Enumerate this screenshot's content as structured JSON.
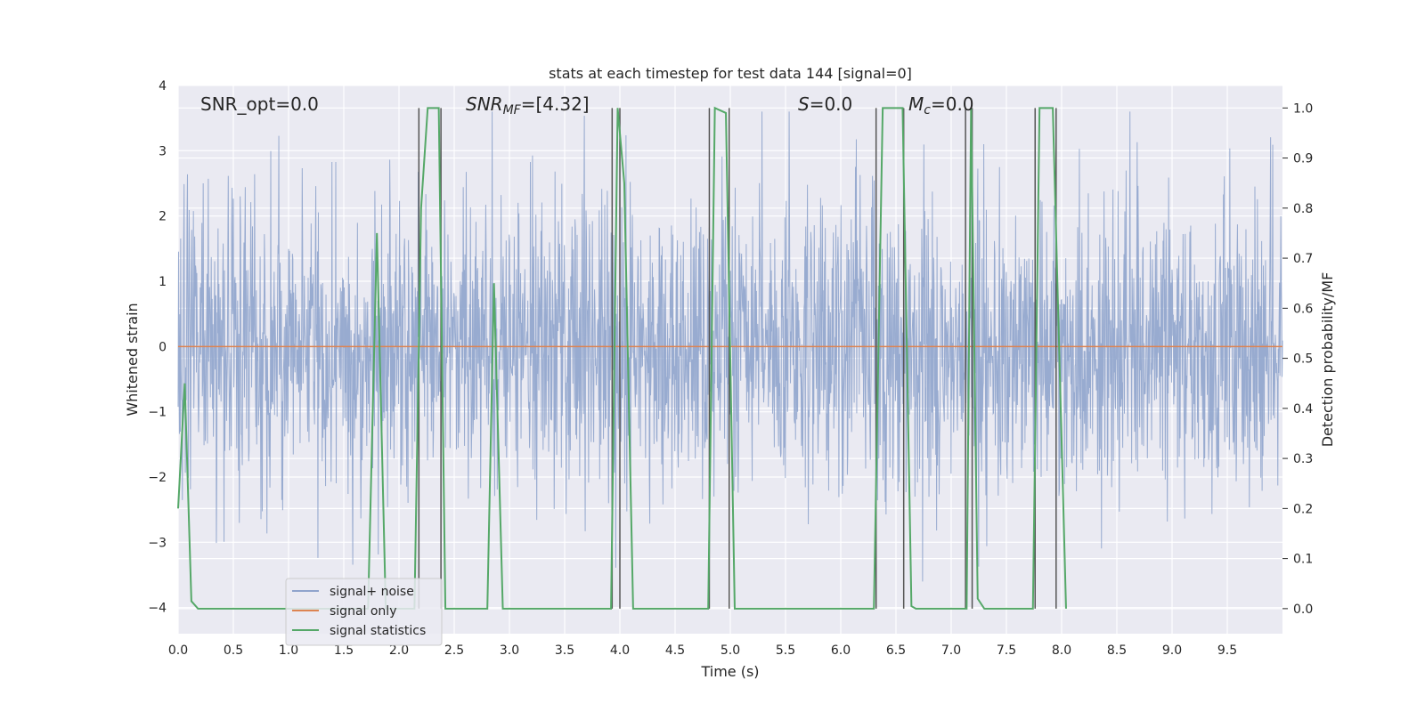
{
  "chart_data": {
    "type": "line",
    "title": "stats at each timestep for test data 144 [signal=0]",
    "xlabel": "Time (s)",
    "ylabel": "Whitened strain",
    "ylabel_right": "Detection probability/MF",
    "xlim": [
      0,
      10
    ],
    "ylim": [
      -4.4,
      4
    ],
    "ylim_right": [
      -0.05,
      1.045
    ],
    "x_ticks": [
      0.0,
      0.5,
      1.0,
      1.5,
      2.0,
      2.5,
      3.0,
      3.5,
      4.0,
      4.5,
      5.0,
      5.5,
      6.0,
      6.5,
      7.0,
      7.5,
      8.0,
      8.5,
      9.0,
      9.5
    ],
    "x_tick_labels": [
      "0.0",
      "0.5",
      "1.0",
      "1.5",
      "2.0",
      "2.5",
      "3.0",
      "3.5",
      "4.0",
      "4.5",
      "5.0",
      "5.5",
      "6.0",
      "6.5",
      "7.0",
      "7.5",
      "8.0",
      "8.5",
      "9.0",
      "9.5"
    ],
    "y_ticks": [
      4,
      3,
      2,
      1,
      0,
      -1,
      -2,
      -3,
      -4
    ],
    "y_tick_labels": [
      "4",
      "3",
      "2",
      "1",
      "0",
      "−1",
      "−2",
      "−3",
      "−4"
    ],
    "y_ticks_right": [
      1.0,
      0.9,
      0.8,
      0.7,
      0.6,
      0.5,
      0.4,
      0.3,
      0.2,
      0.1,
      0.0
    ],
    "y_tick_labels_right": [
      "1.0",
      "0.9",
      "0.8",
      "0.7",
      "0.6",
      "0.5",
      "0.4",
      "0.3",
      "0.2",
      "0.1",
      "0.0"
    ],
    "grid": true,
    "legend_position": "lower-left",
    "annotations": {
      "snr_opt": "SNR_opt=0.0",
      "snr_mf_main": "SNR",
      "snr_mf_sub": "MF",
      "snr_mf_value": "=[4.32]",
      "s_main": "S",
      "s_value": "=0.0",
      "mc_main": "M",
      "mc_sub": "c",
      "mc_value": "=0.0"
    },
    "series": [
      {
        "name": "signal+ noise",
        "color": "#8fa4cc",
        "axis": "left",
        "noise_amplitude": 1.1,
        "noise_peak": 3.6
      },
      {
        "name": "signal only",
        "color": "#dd8452",
        "axis": "left",
        "x": [
          0,
          10
        ],
        "y": [
          0,
          0
        ]
      },
      {
        "name": "signal statistics",
        "color": "#55a868",
        "axis": "right",
        "x": [
          0.0,
          0.06,
          0.12,
          0.18,
          1.72,
          1.8,
          1.88,
          2.14,
          2.2,
          2.26,
          2.36,
          2.42,
          2.48,
          2.8,
          2.86,
          2.94,
          3.92,
          3.98,
          4.04,
          4.12,
          4.8,
          4.86,
          4.96,
          5.04,
          6.3,
          6.38,
          6.56,
          6.64,
          6.68,
          7.14,
          7.18,
          7.24,
          7.3,
          7.74,
          7.8,
          7.92,
          8.04
        ],
        "y": [
          0.2,
          0.45,
          0.015,
          0.0,
          0.0,
          0.75,
          0.0,
          0.0,
          0.8,
          1.0,
          1.0,
          0.0,
          0.0,
          0.0,
          0.65,
          0.0,
          0.0,
          1.0,
          0.85,
          0.0,
          0.0,
          1.0,
          0.99,
          0.0,
          0.0,
          1.0,
          1.0,
          0.005,
          0.0,
          0.0,
          1.0,
          0.02,
          0.0,
          0.0,
          1.0,
          1.0,
          0.0
        ]
      }
    ],
    "vertical_markers": {
      "color": "#555555",
      "x": [
        2.18,
        2.38,
        3.93,
        4.0,
        4.81,
        4.99,
        6.32,
        6.57,
        7.13,
        7.19,
        7.76,
        7.95
      ],
      "y_top": 1.0,
      "y_bottom": 0.0
    }
  }
}
